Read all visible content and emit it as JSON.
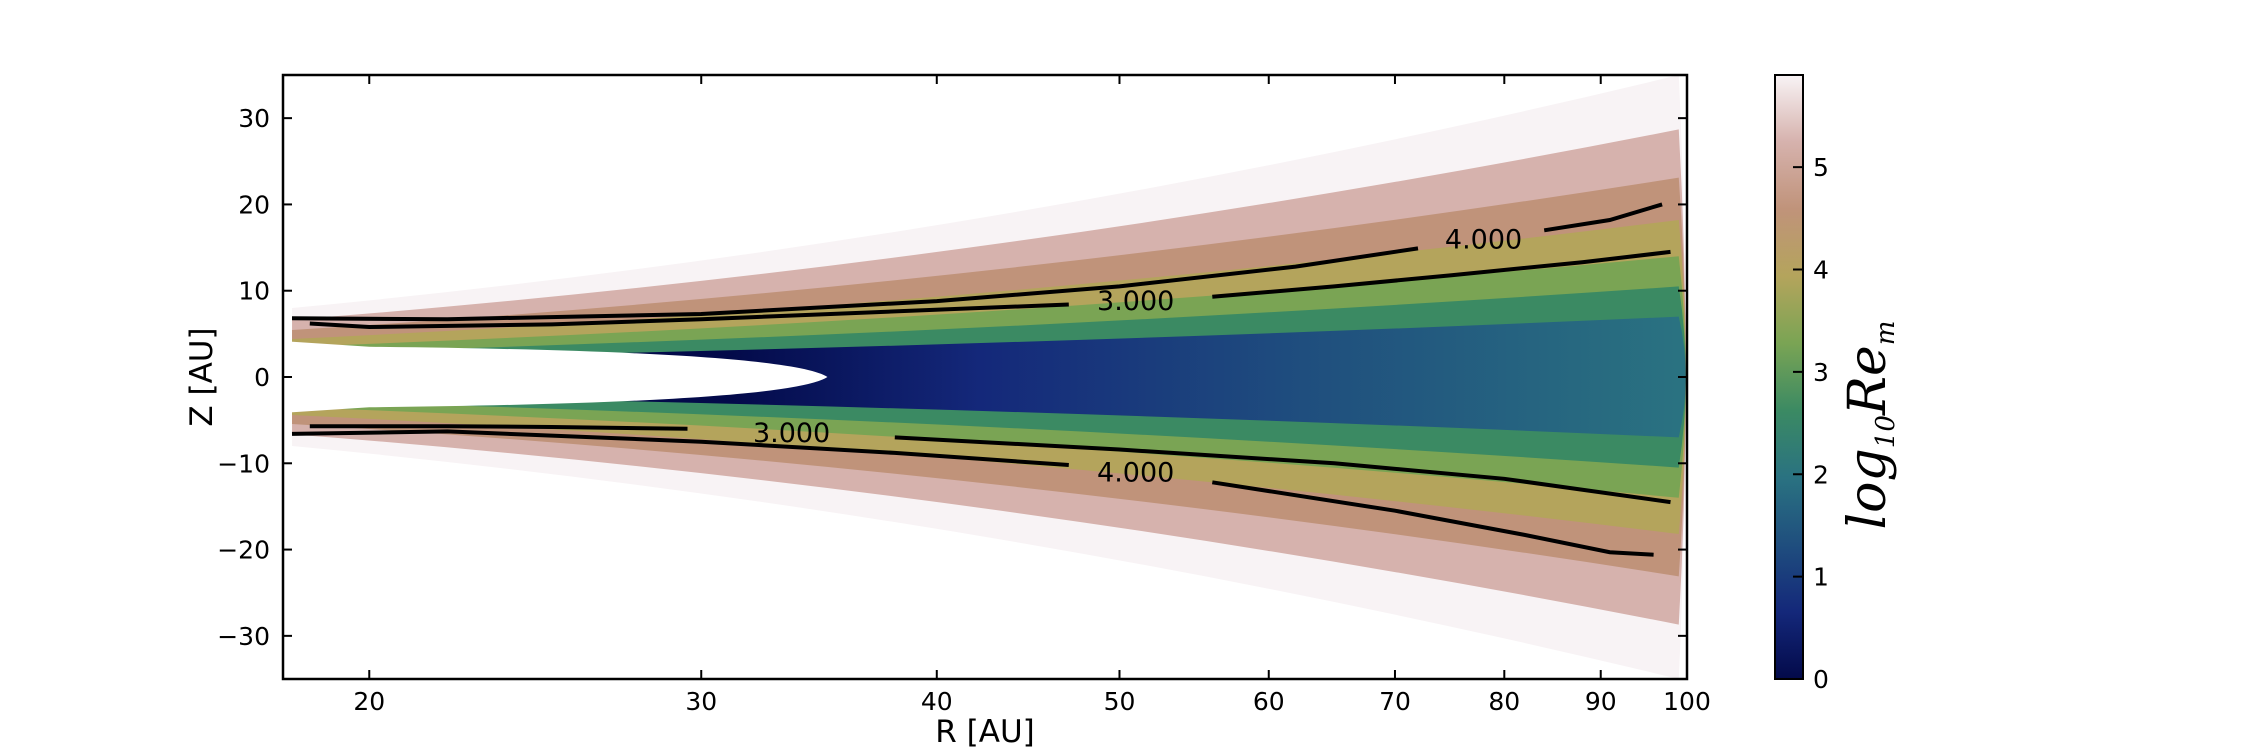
{
  "chart_data": {
    "type": "heatmap",
    "title": "",
    "xlabel": "R [AU]",
    "ylabel": "Z [AU]",
    "x_scale": "log",
    "xlim": [
      18,
      100
    ],
    "ylim": [
      -35,
      35
    ],
    "x_ticks": [
      20,
      30,
      40,
      50,
      60,
      70,
      80,
      90,
      100
    ],
    "y_ticks": [
      30,
      20,
      10,
      0,
      -10,
      -20,
      -30
    ],
    "y_tick_labels": [
      "30",
      "20",
      "10",
      "0",
      "−10",
      "−20",
      "−30"
    ],
    "grid": false,
    "disk": {
      "inner_hole_tip_R": 35,
      "outer_edge_R": 99,
      "opening_angle_deg": 20
    },
    "colorbar": {
      "label": "log10Rem",
      "label_base": "log",
      "label_sub": "10",
      "label_main": "Re",
      "label_sub2": "m",
      "range": [
        0,
        5.9
      ],
      "ticks": [
        0,
        1,
        2,
        3,
        4,
        5
      ],
      "tick_labels": [
        "0",
        "1",
        "2",
        "3",
        "4",
        "5"
      ],
      "colors": [
        "#030a4a",
        "#14287a",
        "#1f4e7e",
        "#2a7281",
        "#3b8a63",
        "#7aa454",
        "#b4a45c",
        "#c0937a",
        "#d6b2ad",
        "#f8f3f5"
      ]
    },
    "contours": [
      {
        "level": 3.0,
        "label": "3.000",
        "upper": [
          [
            18.6,
            6.2
          ],
          [
            20,
            5.8
          ],
          [
            25,
            6.1
          ],
          [
            30,
            6.7
          ],
          [
            38,
            7.6
          ],
          [
            47,
            8.4
          ]
        ],
        "upper_right": [
          [
            56,
            9.3
          ],
          [
            65,
            10.5
          ],
          [
            75,
            11.8
          ],
          [
            88,
            13.3
          ],
          [
            98,
            14.5
          ]
        ],
        "upper_label_R": 51,
        "lower": [
          [
            18.6,
            -5.7
          ],
          [
            22,
            -5.7
          ],
          [
            25,
            -5.8
          ],
          [
            29.5,
            -6.0
          ]
        ],
        "lower_right": [
          [
            38,
            -7.0
          ],
          [
            50,
            -8.4
          ],
          [
            65,
            -10.0
          ],
          [
            80,
            -11.8
          ],
          [
            98,
            -14.5
          ]
        ],
        "lower_label_R": 33.5
      },
      {
        "level": 4.0,
        "label": "4.000",
        "upper": [
          [
            18.2,
            6.8
          ],
          [
            22,
            6.7
          ],
          [
            30,
            7.3
          ],
          [
            40,
            8.8
          ],
          [
            50,
            10.5
          ],
          [
            62,
            12.8
          ],
          [
            72,
            14.9
          ]
        ],
        "upper_right": [
          [
            84,
            17.0
          ],
          [
            91,
            18.2
          ],
          [
            97,
            20.0
          ]
        ],
        "upper_label_R": 78,
        "lower": [
          [
            18.2,
            -6.6
          ],
          [
            22,
            -6.3
          ],
          [
            30,
            -7.5
          ],
          [
            38,
            -8.8
          ],
          [
            47,
            -10.2
          ]
        ],
        "lower_right": [
          [
            56,
            -12.2
          ],
          [
            70,
            -15.5
          ],
          [
            82,
            -18.3
          ],
          [
            91,
            -20.3
          ],
          [
            96,
            -20.6
          ]
        ],
        "lower_label_R": 51
      }
    ]
  }
}
